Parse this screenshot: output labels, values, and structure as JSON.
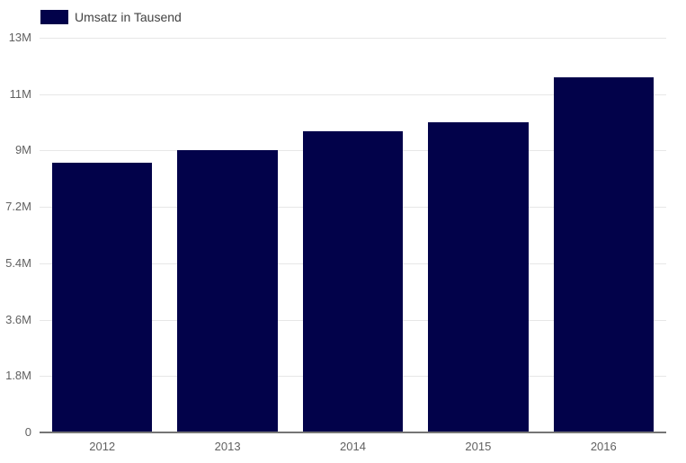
{
  "chart_data": {
    "type": "bar",
    "title": "",
    "legend": {
      "position": "top-left",
      "label": "Umsatz in Tausend"
    },
    "categories": [
      "2012",
      "2013",
      "2014",
      "2015",
      "2016"
    ],
    "series": [
      {
        "name": "Umsatz in Tausend",
        "color": "#02024a",
        "values": [
          8600000,
          9000000,
          9700000,
          10000000,
          11600000
        ]
      }
    ],
    "x_axis": {
      "tick_labels": [
        "2012",
        "2013",
        "2014",
        "2015",
        "2016"
      ]
    },
    "y_axis": {
      "tick_labels": [
        "0",
        "1.8M",
        "3.6M",
        "5.4M",
        "7.2M",
        "9M",
        "11M",
        "13M"
      ],
      "tick_values": [
        0,
        1800000,
        3600000,
        5400000,
        7200000,
        9000000,
        11000000,
        13000000
      ],
      "range": [
        0,
        13000000
      ],
      "note": "ticks evenly spaced in pixels despite non-uniform value steps (1.8M steps up to 9M, then 2M steps)"
    },
    "grid": true
  },
  "colors": {
    "bar": "#02024a",
    "gridline": "#e7e7e7",
    "baseline": "#757575",
    "tick_text": "#616161",
    "legend_text": "#424242",
    "background": "#ffffff"
  }
}
